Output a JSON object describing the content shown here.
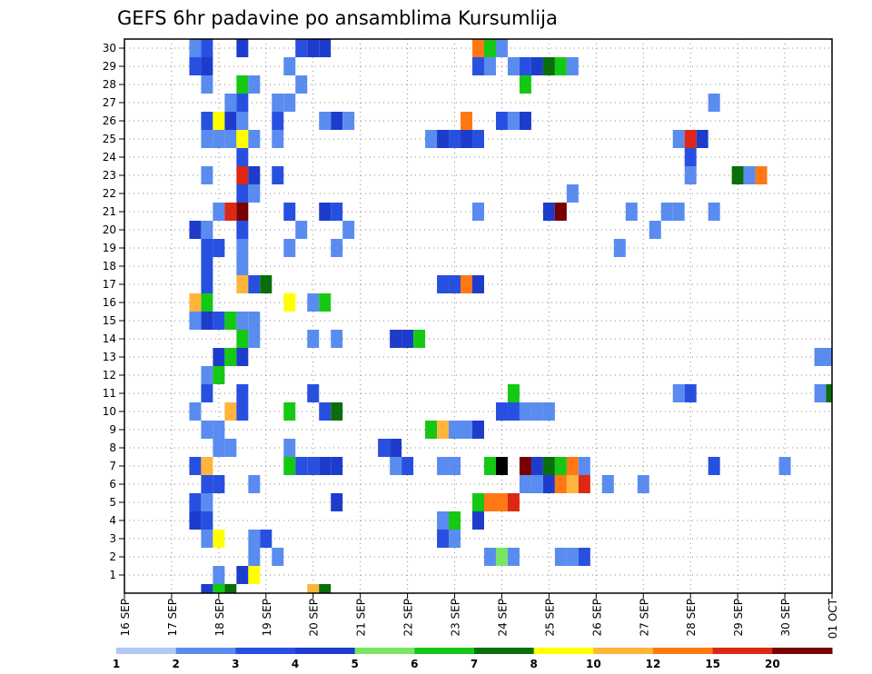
{
  "chart_data": {
    "type": "heatmap",
    "title": "GEFS 6hr padavine po ansamblima Kursumlija",
    "xlabel": "",
    "ylabel": "",
    "x_tick_labels": [
      "16 SEP",
      "17 SEP",
      "18 SEP",
      "19 SEP",
      "20 SEP",
      "21 SEP",
      "22 SEP",
      "23 SEP",
      "24 SEP",
      "25 SEP",
      "26 SEP",
      "27 SEP",
      "28 SEP",
      "29 SEP",
      "30 SEP",
      "01 OCT"
    ],
    "y_tick_labels": [
      "1",
      "2",
      "3",
      "4",
      "5",
      "6",
      "7",
      "8",
      "9",
      "10",
      "11",
      "12",
      "13",
      "14",
      "15",
      "16",
      "17",
      "18",
      "19",
      "20",
      "21",
      "22",
      "23",
      "24",
      "25",
      "26",
      "27",
      "28",
      "29",
      "30"
    ],
    "x_range_steps": [
      0,
      60
    ],
    "y_range_members": [
      0,
      30
    ],
    "step_hours": 6,
    "grid": "dotted",
    "colorbar": {
      "labels": [
        "1",
        "2",
        "3",
        "4",
        "5",
        "6",
        "7",
        "8",
        "10",
        "12",
        "15",
        "20"
      ],
      "colors": [
        "#b4c8f8",
        "#5a8cf0",
        "#2850e0",
        "#1e3ccc",
        "#78e664",
        "#14c814",
        "#0a6e0a",
        "#ffff00",
        "#ffb43c",
        "#ff7814",
        "#dc2814",
        "#780000"
      ]
    },
    "cells": [
      [
        0,
        7,
        3
      ],
      [
        0,
        8,
        5
      ],
      [
        0,
        9,
        6
      ],
      [
        0,
        16,
        8
      ],
      [
        0,
        17,
        6
      ],
      [
        1,
        8,
        1
      ],
      [
        1,
        10,
        3
      ],
      [
        1,
        11,
        7
      ],
      [
        2,
        11,
        1
      ],
      [
        2,
        13,
        1
      ],
      [
        2,
        31,
        1
      ],
      [
        2,
        32,
        4
      ],
      [
        2,
        33,
        1
      ],
      [
        2,
        37,
        1
      ],
      [
        2,
        38,
        1
      ],
      [
        2,
        39,
        2
      ],
      [
        3,
        7,
        1
      ],
      [
        3,
        8,
        7
      ],
      [
        3,
        11,
        1
      ],
      [
        3,
        12,
        2
      ],
      [
        3,
        27,
        2
      ],
      [
        3,
        28,
        1
      ],
      [
        4,
        6,
        3
      ],
      [
        4,
        7,
        2
      ],
      [
        4,
        27,
        1
      ],
      [
        4,
        28,
        5
      ],
      [
        4,
        30,
        3
      ],
      [
        5,
        6,
        2
      ],
      [
        5,
        7,
        1
      ],
      [
        5,
        18,
        3
      ],
      [
        5,
        30,
        5
      ],
      [
        5,
        31,
        9
      ],
      [
        5,
        32,
        9
      ],
      [
        5,
        33,
        10
      ],
      [
        6,
        7,
        2
      ],
      [
        6,
        8,
        2
      ],
      [
        6,
        11,
        1
      ],
      [
        6,
        34,
        1
      ],
      [
        6,
        35,
        1
      ],
      [
        6,
        36,
        3
      ],
      [
        6,
        37,
        9
      ],
      [
        6,
        38,
        8
      ],
      [
        6,
        39,
        10
      ],
      [
        6,
        41,
        1
      ],
      [
        6,
        44,
        1
      ],
      [
        7,
        6,
        2
      ],
      [
        7,
        7,
        8
      ],
      [
        7,
        14,
        5
      ],
      [
        7,
        15,
        2
      ],
      [
        7,
        16,
        2
      ],
      [
        7,
        17,
        3
      ],
      [
        7,
        18,
        3
      ],
      [
        7,
        23,
        1
      ],
      [
        7,
        24,
        2
      ],
      [
        7,
        27,
        1
      ],
      [
        7,
        28,
        1
      ],
      [
        7,
        31,
        5
      ],
      [
        7,
        32,
        12
      ],
      [
        7,
        34,
        11
      ],
      [
        7,
        35,
        3
      ],
      [
        7,
        36,
        6
      ],
      [
        7,
        37,
        5
      ],
      [
        7,
        38,
        9
      ],
      [
        7,
        39,
        1
      ],
      [
        7,
        50,
        2
      ],
      [
        7,
        56,
        1
      ],
      [
        8,
        8,
        1
      ],
      [
        8,
        9,
        1
      ],
      [
        8,
        14,
        1
      ],
      [
        8,
        22,
        2
      ],
      [
        8,
        23,
        3
      ],
      [
        9,
        7,
        1
      ],
      [
        9,
        8,
        1
      ],
      [
        9,
        26,
        5
      ],
      [
        9,
        27,
        8
      ],
      [
        9,
        28,
        1
      ],
      [
        9,
        29,
        1
      ],
      [
        9,
        30,
        3
      ],
      [
        10,
        6,
        1
      ],
      [
        10,
        9,
        8
      ],
      [
        10,
        10,
        2
      ],
      [
        10,
        14,
        5
      ],
      [
        10,
        17,
        2
      ],
      [
        10,
        18,
        6
      ],
      [
        10,
        32,
        2
      ],
      [
        10,
        33,
        2
      ],
      [
        10,
        34,
        1
      ],
      [
        10,
        35,
        1
      ],
      [
        10,
        36,
        1
      ],
      [
        11,
        7,
        2
      ],
      [
        11,
        10,
        2
      ],
      [
        11,
        16,
        2
      ],
      [
        11,
        33,
        5
      ],
      [
        11,
        47,
        1
      ],
      [
        11,
        48,
        2
      ],
      [
        11,
        59,
        1
      ],
      [
        11,
        60,
        6
      ],
      [
        12,
        7,
        1
      ],
      [
        12,
        8,
        5
      ],
      [
        13,
        8,
        3
      ],
      [
        13,
        9,
        5
      ],
      [
        13,
        10,
        3
      ],
      [
        13,
        59,
        1
      ],
      [
        13,
        60,
        1
      ],
      [
        14,
        10,
        5
      ],
      [
        14,
        11,
        1
      ],
      [
        14,
        16,
        1
      ],
      [
        14,
        18,
        1
      ],
      [
        14,
        23,
        3
      ],
      [
        14,
        24,
        3
      ],
      [
        14,
        25,
        5
      ],
      [
        15,
        6,
        1
      ],
      [
        15,
        7,
        3
      ],
      [
        15,
        8,
        2
      ],
      [
        15,
        9,
        5
      ],
      [
        15,
        10,
        1
      ],
      [
        15,
        11,
        1
      ],
      [
        16,
        6,
        8
      ],
      [
        16,
        7,
        5
      ],
      [
        16,
        14,
        7
      ],
      [
        16,
        16,
        1
      ],
      [
        16,
        17,
        5
      ],
      [
        17,
        7,
        2
      ],
      [
        17,
        10,
        8
      ],
      [
        17,
        11,
        2
      ],
      [
        17,
        12,
        6
      ],
      [
        17,
        27,
        2
      ],
      [
        17,
        28,
        2
      ],
      [
        17,
        29,
        9
      ],
      [
        17,
        30,
        3
      ],
      [
        18,
        7,
        2
      ],
      [
        18,
        10,
        1
      ],
      [
        19,
        7,
        2
      ],
      [
        19,
        8,
        2
      ],
      [
        19,
        10,
        1
      ],
      [
        19,
        14,
        1
      ],
      [
        19,
        18,
        1
      ],
      [
        19,
        42,
        1
      ],
      [
        20,
        6,
        3
      ],
      [
        20,
        7,
        1
      ],
      [
        20,
        10,
        2
      ],
      [
        20,
        15,
        1
      ],
      [
        20,
        19,
        1
      ],
      [
        20,
        45,
        1
      ],
      [
        21,
        8,
        1
      ],
      [
        21,
        9,
        10
      ],
      [
        21,
        10,
        11
      ],
      [
        21,
        14,
        2
      ],
      [
        21,
        17,
        3
      ],
      [
        21,
        18,
        2
      ],
      [
        21,
        30,
        1
      ],
      [
        21,
        36,
        3
      ],
      [
        21,
        37,
        11
      ],
      [
        21,
        43,
        1
      ],
      [
        21,
        46,
        1
      ],
      [
        21,
        47,
        1
      ],
      [
        21,
        50,
        1
      ],
      [
        22,
        10,
        2
      ],
      [
        22,
        11,
        1
      ],
      [
        22,
        38,
        1
      ],
      [
        23,
        7,
        1
      ],
      [
        23,
        10,
        10
      ],
      [
        23,
        11,
        3
      ],
      [
        23,
        13,
        2
      ],
      [
        23,
        48,
        1
      ],
      [
        23,
        52,
        6
      ],
      [
        23,
        53,
        1
      ],
      [
        23,
        54,
        9
      ],
      [
        24,
        10,
        2
      ],
      [
        24,
        48,
        2
      ],
      [
        25,
        7,
        1
      ],
      [
        25,
        8,
        1
      ],
      [
        25,
        9,
        1
      ],
      [
        25,
        10,
        7
      ],
      [
        25,
        11,
        1
      ],
      [
        25,
        13,
        1
      ],
      [
        25,
        26,
        1
      ],
      [
        25,
        27,
        3
      ],
      [
        25,
        28,
        2
      ],
      [
        25,
        29,
        3
      ],
      [
        25,
        30,
        2
      ],
      [
        25,
        47,
        1
      ],
      [
        25,
        48,
        10
      ],
      [
        25,
        49,
        3
      ],
      [
        26,
        7,
        2
      ],
      [
        26,
        8,
        7
      ],
      [
        26,
        9,
        3
      ],
      [
        26,
        10,
        1
      ],
      [
        26,
        13,
        2
      ],
      [
        26,
        17,
        1
      ],
      [
        26,
        18,
        3
      ],
      [
        26,
        19,
        1
      ],
      [
        26,
        29,
        9
      ],
      [
        26,
        32,
        2
      ],
      [
        26,
        33,
        1
      ],
      [
        26,
        34,
        3
      ],
      [
        27,
        9,
        1
      ],
      [
        27,
        10,
        2
      ],
      [
        27,
        13,
        1
      ],
      [
        27,
        14,
        1
      ],
      [
        27,
        50,
        1
      ],
      [
        28,
        7,
        1
      ],
      [
        28,
        10,
        5
      ],
      [
        28,
        11,
        1
      ],
      [
        28,
        15,
        1
      ],
      [
        28,
        34,
        5
      ],
      [
        29,
        6,
        2
      ],
      [
        29,
        7,
        3
      ],
      [
        29,
        14,
        1
      ],
      [
        29,
        30,
        2
      ],
      [
        29,
        31,
        1
      ],
      [
        29,
        33,
        1
      ],
      [
        29,
        34,
        2
      ],
      [
        29,
        35,
        3
      ],
      [
        29,
        36,
        6
      ],
      [
        29,
        37,
        5
      ],
      [
        29,
        38,
        1
      ],
      [
        30,
        6,
        1
      ],
      [
        30,
        7,
        2
      ],
      [
        30,
        10,
        3
      ],
      [
        30,
        15,
        2
      ],
      [
        30,
        16,
        3
      ],
      [
        30,
        17,
        3
      ],
      [
        30,
        30,
        9
      ],
      [
        30,
        31,
        5
      ],
      [
        30,
        32,
        1
      ]
    ]
  }
}
